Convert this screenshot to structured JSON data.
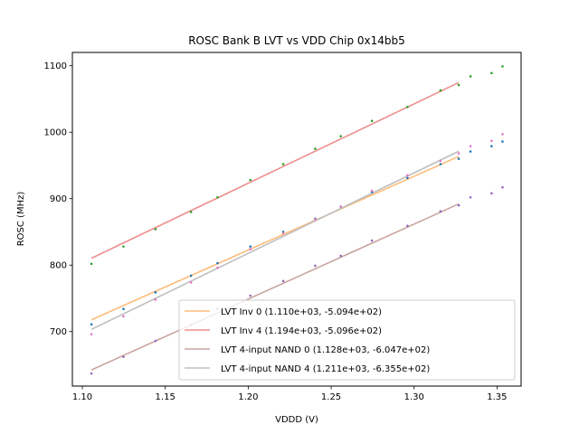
{
  "chart_data": {
    "type": "scatter",
    "title": "ROSC Bank B LVT vs VDD Chip 0x14bb5",
    "xlabel": "VDDD (V)",
    "ylabel": "ROSC (MHz)",
    "xlim": [
      1.094,
      1.3645
    ],
    "ylim": [
      618,
      1120
    ],
    "xticks": [
      1.1,
      1.15,
      1.2,
      1.25,
      1.3,
      1.35
    ],
    "xtick_labels": [
      "1.10",
      "1.15",
      "1.20",
      "1.25",
      "1.30",
      "1.35"
    ],
    "yticks": [
      700,
      800,
      900,
      1000,
      1100
    ],
    "ytick_labels": [
      "700",
      "800",
      "900",
      "1000",
      "1100"
    ],
    "grid": false,
    "legend_position": "lower-right",
    "x": [
      1.1055,
      1.1248,
      1.1441,
      1.1655,
      1.1815,
      1.2013,
      1.2211,
      1.2404,
      1.2558,
      1.2746,
      1.296,
      1.3159,
      1.3269,
      1.334,
      1.3467,
      1.3533
    ],
    "scatter_series": [
      {
        "name": "LVT Inv 0 data",
        "color": "#1f77b4",
        "values": [
          711,
          734,
          759,
          784,
          803,
          828,
          850,
          870,
          888,
          910,
          931,
          952,
          960,
          971,
          979,
          986
        ]
      },
      {
        "name": "LVT Inv 4 data",
        "color": "#2ca02c",
        "values": [
          802,
          828,
          854,
          880,
          902,
          928,
          952,
          975,
          994,
          1017,
          1038,
          1063,
          1071,
          1084,
          1089,
          1099
        ]
      },
      {
        "name": "LVT 4-input NAND 0 data",
        "color": "#9467bd",
        "values": [
          637,
          662,
          686,
          710,
          734,
          754,
          776,
          799,
          814,
          837,
          859,
          881,
          890,
          902,
          908,
          917
        ]
      },
      {
        "name": "LVT 4-input NAND 4 data",
        "color": "#e377c2",
        "values": [
          696,
          723,
          748,
          774,
          796,
          824,
          848,
          869,
          888,
          912,
          935,
          957,
          968,
          979,
          987,
          997
        ]
      }
    ],
    "fit_range": [
      1.1055,
      1.3269
    ],
    "series": [
      {
        "name": "LVT Inv 0 (1.110e+03, -5.094e+02)",
        "slope": 1110.0,
        "intercept": -509.4,
        "color": "#ffbb78"
      },
      {
        "name": "LVT Inv 4 (1.194e+03, -5.096e+02)",
        "slope": 1194.0,
        "intercept": -509.6,
        "color": "#ee8e8e"
      },
      {
        "name": "LVT 4-input NAND 0 (1.128e+03, -6.047e+02)",
        "slope": 1128.0,
        "intercept": -604.7,
        "color": "#c9a69f"
      },
      {
        "name": "LVT 4-input NAND 4 (1.211e+03, -6.355e+02)",
        "slope": 1211.0,
        "intercept": -635.5,
        "color": "#bfbfbf"
      }
    ]
  }
}
